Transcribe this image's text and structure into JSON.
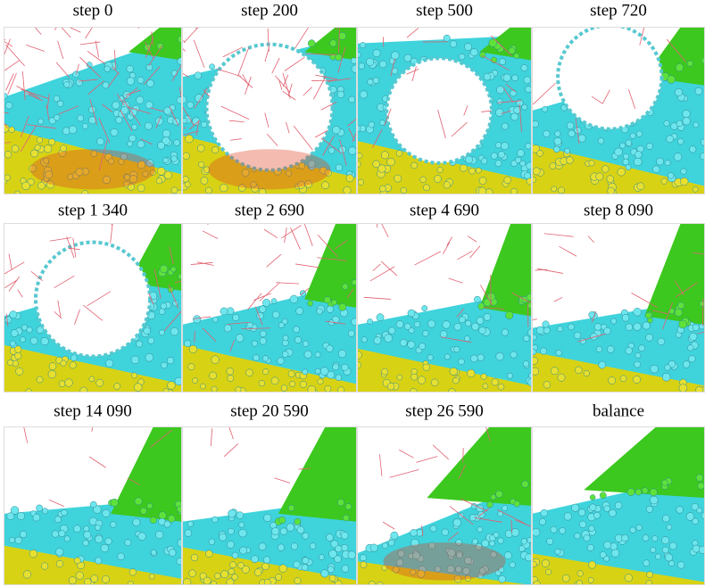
{
  "panels": [
    {
      "label": "step 0"
    },
    {
      "label": "step 200"
    },
    {
      "label": "step 500"
    },
    {
      "label": "step 720"
    },
    {
      "label": "step 1 340"
    },
    {
      "label": "step 2 690"
    },
    {
      "label": "step 4 690"
    },
    {
      "label": "step 8 090"
    },
    {
      "label": "step 14 090"
    },
    {
      "label": "step 20 590"
    },
    {
      "label": "step 26 590"
    },
    {
      "label": "balance"
    }
  ]
}
